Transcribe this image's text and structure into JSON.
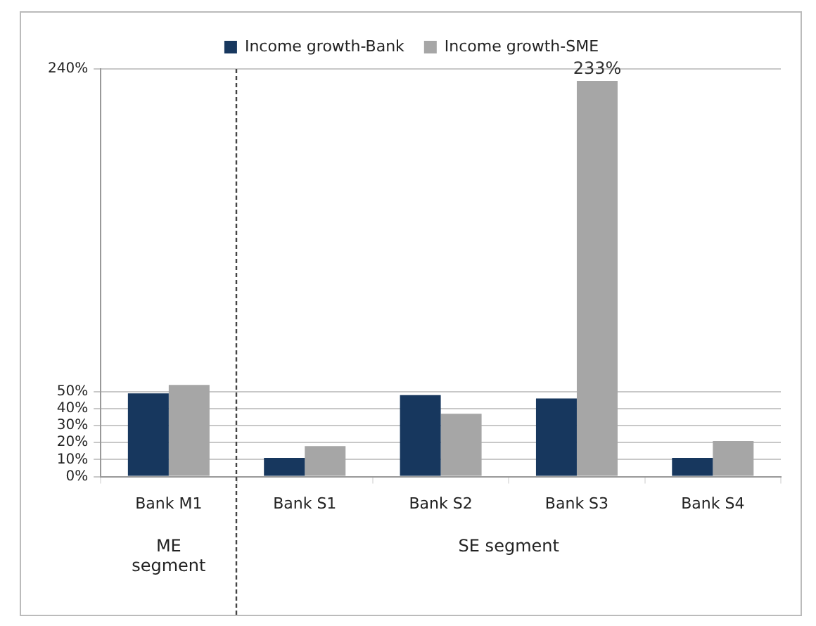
{
  "chart_data": {
    "type": "bar",
    "categories": [
      "Bank M1",
      "Bank S1",
      "Bank S2",
      "Bank S3",
      "Bank S4"
    ],
    "series": [
      {
        "name": "Income growth-Bank",
        "color": "#17375e",
        "values": [
          49,
          11,
          48,
          46,
          11
        ]
      },
      {
        "name": "Income growth-SME",
        "color": "#a6a6a6",
        "values": [
          54,
          18,
          37,
          233,
          21
        ],
        "value_labels": [
          null,
          null,
          null,
          "233%",
          null
        ]
      }
    ],
    "ylim": [
      0,
      240
    ],
    "yticks": [
      {
        "value": 0,
        "label": "0%"
      },
      {
        "value": 10,
        "label": "10%"
      },
      {
        "value": 20,
        "label": "20%"
      },
      {
        "value": 30,
        "label": "30%"
      },
      {
        "value": 40,
        "label": "40%"
      },
      {
        "value": 50,
        "label": "50%"
      },
      {
        "value": 240,
        "label": "240%"
      }
    ],
    "grid": "y",
    "legend": "top",
    "annotations": [
      "ME segment",
      "SE segment"
    ]
  }
}
